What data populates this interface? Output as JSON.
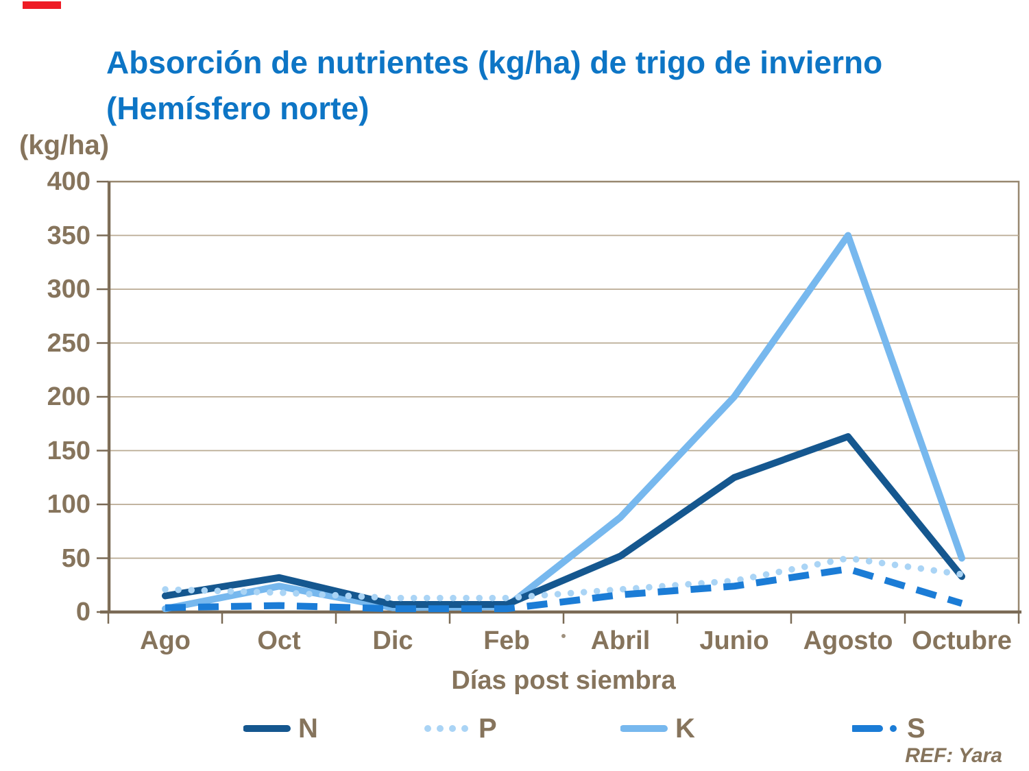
{
  "title": {
    "line1": "Absorción de nutrientes (kg/ha) de trigo de invierno",
    "line2": "(Hemísfero norte)"
  },
  "y_axis": {
    "unit_label": "(kg/ha)",
    "tick_labels": [
      "400",
      "350",
      "300",
      "250",
      "200",
      "150",
      "100",
      "50",
      "0"
    ]
  },
  "x_axis": {
    "title": "Días post siembra",
    "tick_labels": [
      "Ago",
      "Oct",
      "Dic",
      "Feb",
      "Abril",
      "Junio",
      "Agosto",
      "Octubre"
    ]
  },
  "footer": {
    "ref": "REF: Yara"
  },
  "legend": [
    {
      "name": "N",
      "style": "solid",
      "color_key": "series_N"
    },
    {
      "name": "P",
      "style": "dotted",
      "color_key": "series_P"
    },
    {
      "name": "K",
      "style": "solid",
      "color_key": "series_K"
    },
    {
      "name": "S",
      "style": "dashed",
      "color_key": "series_S"
    }
  ],
  "chart_data": {
    "type": "line",
    "title": "Absorción de nutrientes (kg/ha) de trigo de invierno (Hemísfero norte)",
    "xlabel": "Días post siembra",
    "ylabel": "(kg/ha)",
    "categories": [
      "Ago",
      "Oct",
      "Dic",
      "Feb",
      "Abril",
      "Junio",
      "Agosto",
      "Octubre"
    ],
    "series": [
      {
        "name": "N",
        "style": "solid",
        "color_key": "series_N",
        "values": [
          15,
          32,
          7,
          7,
          52,
          125,
          163,
          33
        ]
      },
      {
        "name": "P",
        "style": "dotted",
        "color_key": "series_P",
        "values": [
          21,
          18,
          13,
          13,
          21,
          29,
          50,
          35
        ]
      },
      {
        "name": "K",
        "style": "solid",
        "color_key": "series_K",
        "values": [
          3,
          24,
          4,
          5,
          88,
          200,
          350,
          50
        ]
      },
      {
        "name": "S",
        "style": "dashed",
        "color_key": "series_S",
        "values": [
          4,
          6,
          3,
          3,
          16,
          24,
          40,
          8
        ]
      }
    ],
    "ylim": [
      0,
      400
    ],
    "ytick_step": 50,
    "grid": true,
    "legend_position": "bottom",
    "draw_order": [
      "K",
      "N",
      "P",
      "S"
    ]
  },
  "colors": {
    "title_blue": "#0d75c5",
    "text_brown": "#86745c",
    "grid": "#b9aa92",
    "frame": "#97876f",
    "axis": "#7a6a55",
    "red_box": "#ee1c25",
    "series_N": "#15578f",
    "series_P": "#aad4f5",
    "series_K": "#77b8ee",
    "series_S": "#1b7cd6"
  }
}
